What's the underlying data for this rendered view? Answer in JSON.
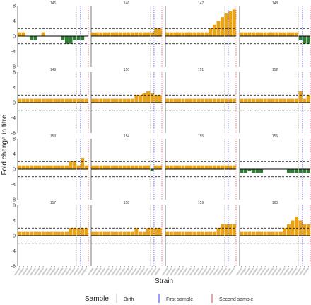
{
  "chart_data": {
    "type": "bar",
    "ylabel": "Fold change in titre",
    "xlabel": "Strain",
    "ylim": [
      -8,
      8
    ],
    "yticks": [
      -8,
      -4,
      0,
      4,
      8
    ],
    "threshold_lines": [
      -2,
      0,
      2
    ],
    "x_tick_count": 18,
    "marker_lines": {
      "birth": 14.5,
      "first": 15.5,
      "second": 17.5
    },
    "legend": {
      "title": "Sample",
      "items": [
        {
          "label": "Birth",
          "color": "#bdbdbd"
        },
        {
          "label": "First sample",
          "color": "#3b3bf5"
        },
        {
          "label": "Second sample",
          "color": "#e0405a"
        }
      ]
    },
    "colors": {
      "positive": "#E8A317",
      "negative": "#2e7d32",
      "threshold": "#000000"
    },
    "panels": [
      {
        "id": "145",
        "values": [
          1,
          1,
          0,
          -1,
          -1,
          0,
          1,
          0,
          0,
          0,
          0,
          -1,
          -2,
          -2,
          -1,
          -1,
          -1,
          0
        ]
      },
      {
        "id": "146",
        "values": [
          1,
          1,
          1,
          1,
          1,
          1,
          1,
          1,
          1,
          1,
          1,
          1,
          1,
          1,
          1,
          1,
          2,
          2
        ]
      },
      {
        "id": "147",
        "values": [
          1,
          1,
          1,
          1,
          1,
          1,
          1,
          1,
          1,
          1,
          1,
          2,
          3,
          4,
          5,
          6,
          6.5,
          7
        ]
      },
      {
        "id": "148",
        "values": [
          1,
          1,
          1,
          1,
          1,
          1,
          1,
          1,
          1,
          1,
          1,
          1,
          1,
          1,
          1,
          -1,
          -2,
          -2
        ]
      },
      {
        "id": "149",
        "values": [
          1,
          1,
          1,
          1,
          1,
          1,
          1,
          1,
          1,
          1,
          1,
          1,
          1,
          1,
          1,
          1,
          1,
          1
        ]
      },
      {
        "id": "150",
        "values": [
          1,
          1,
          1,
          1,
          1,
          1,
          1,
          1,
          1,
          1,
          1,
          2,
          2,
          2.5,
          3,
          2.5,
          2,
          2
        ]
      },
      {
        "id": "151",
        "values": [
          1,
          1,
          1,
          1,
          1,
          1,
          1,
          1,
          1,
          1,
          1,
          1,
          1,
          1,
          1,
          1,
          1,
          1
        ]
      },
      {
        "id": "152",
        "values": [
          1,
          1,
          1,
          1,
          1,
          1,
          1,
          1,
          1,
          1,
          1,
          1,
          1,
          1,
          1,
          3,
          1,
          2
        ]
      },
      {
        "id": "153",
        "values": [
          1,
          1,
          1,
          1,
          1,
          1,
          1,
          1,
          1,
          1,
          1,
          1,
          1,
          2,
          2,
          1,
          3,
          1
        ]
      },
      {
        "id": "154",
        "values": [
          1,
          1,
          1,
          1,
          1,
          1,
          1,
          1,
          1,
          1,
          1,
          1,
          1,
          1,
          1,
          -0.5,
          1,
          1
        ]
      },
      {
        "id": "155",
        "values": [
          1,
          1,
          1,
          1,
          1,
          1,
          1,
          1,
          1,
          1,
          1,
          1,
          1,
          1,
          1,
          1,
          1,
          1
        ]
      },
      {
        "id": "156",
        "values": [
          -1,
          -1,
          -0.5,
          -1,
          -1,
          -1,
          0,
          0,
          0,
          0,
          0,
          0,
          -1,
          -1,
          -1,
          -1,
          -1,
          -1
        ]
      },
      {
        "id": "157",
        "values": [
          1,
          1,
          1,
          1,
          1,
          1,
          1,
          1,
          1,
          1,
          1,
          1,
          1,
          2,
          2,
          2,
          2,
          2
        ]
      },
      {
        "id": "158",
        "values": [
          1,
          1,
          1,
          1,
          1,
          1,
          1,
          1,
          1,
          1,
          1,
          2,
          1,
          1,
          2,
          2,
          2,
          2
        ]
      },
      {
        "id": "159",
        "values": [
          1,
          1,
          1,
          1,
          1,
          1,
          1,
          1,
          1,
          1,
          1,
          1,
          1,
          2,
          3,
          3,
          3,
          3
        ]
      },
      {
        "id": "160",
        "values": [
          1,
          1,
          1,
          1,
          1,
          1,
          1,
          1,
          1,
          1,
          1,
          2,
          3,
          4,
          5,
          4,
          3,
          3
        ]
      }
    ]
  }
}
